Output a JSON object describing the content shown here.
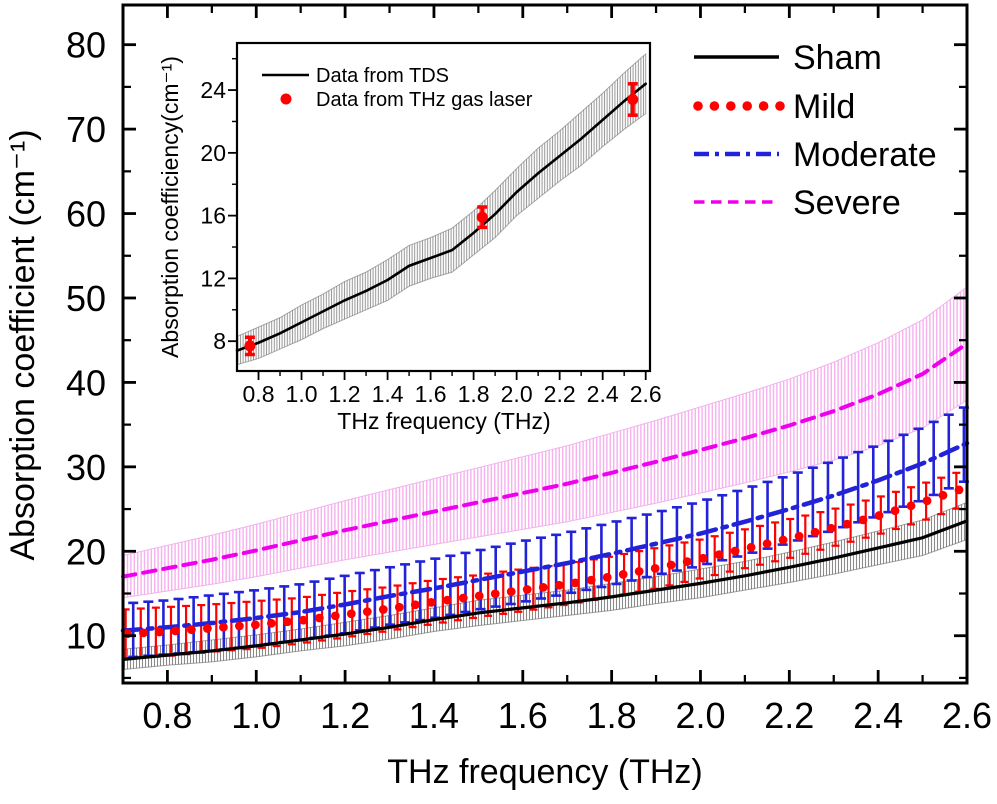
{
  "chart_data": [
    {
      "id": "main",
      "type": "line",
      "xlabel": "THz frequency (THz)",
      "ylabel": "Absorption coefficient (cm⁻¹)",
      "xlim": [
        0.7,
        2.6
      ],
      "ylim": [
        4.4,
        84.7
      ],
      "grid": false,
      "legend_position": "top-right",
      "x_ticks": {
        "major": [
          0.8,
          1.0,
          1.2,
          1.4,
          1.6,
          1.8,
          2.0,
          2.2,
          2.4,
          2.6
        ],
        "labels": [
          "0.8",
          "1.0",
          "1.2",
          "1.4",
          "1.6",
          "1.8",
          "2.0",
          "2.2",
          "2.4",
          "2.6"
        ],
        "minor": [
          0.9,
          1.1,
          1.3,
          1.5,
          1.7,
          1.9,
          2.1,
          2.3,
          2.5
        ]
      },
      "y_ticks": {
        "major": [
          10,
          20,
          30,
          40,
          50,
          60,
          70,
          80
        ],
        "labels": [
          "10",
          "20",
          "30",
          "40",
          "50",
          "60",
          "70",
          "80"
        ],
        "minor": [
          5,
          15,
          25,
          35,
          45,
          55,
          65,
          75
        ]
      },
      "x": [
        0.7,
        0.8,
        0.9,
        1.0,
        1.1,
        1.2,
        1.3,
        1.4,
        1.5,
        1.6,
        1.7,
        1.8,
        1.9,
        2.0,
        2.1,
        2.2,
        2.3,
        2.4,
        2.5,
        2.6
      ],
      "series": [
        {
          "name": "Sham",
          "style": "band-line",
          "color": "#000000",
          "band_hatch": "#3d3d3d",
          "y": [
            7.2,
            7.7,
            8.2,
            8.8,
            9.5,
            10.2,
            11.0,
            11.9,
            12.7,
            13.3,
            13.9,
            14.6,
            15.4,
            16.2,
            17.1,
            18.1,
            19.2,
            20.4,
            21.6,
            23.6
          ],
          "err": [
            1.2,
            1.2,
            1.3,
            1.3,
            1.3,
            1.4,
            1.4,
            1.4,
            1.5,
            1.5,
            1.5,
            1.6,
            1.6,
            1.7,
            1.7,
            1.8,
            1.9,
            2.0,
            2.1,
            2.2
          ]
        },
        {
          "name": "Mild",
          "style": "dots-errorbars",
          "color": "#ff0000",
          "y": [
            10.2,
            10.5,
            10.9,
            11.3,
            11.8,
            12.5,
            13.2,
            14.0,
            14.7,
            15.4,
            16.1,
            17.0,
            18.0,
            19.1,
            20.3,
            21.5,
            22.8,
            24.2,
            25.8,
            27.6
          ],
          "err": [
            2.9,
            2.9,
            2.8,
            2.8,
            2.7,
            2.7,
            2.6,
            2.6,
            2.5,
            2.5,
            2.4,
            2.4,
            2.4,
            2.3,
            2.3,
            2.3,
            2.2,
            2.2,
            2.2,
            2.1
          ]
        },
        {
          "name": "Moderate",
          "style": "dashdot-errorbars",
          "color": "#2222d8",
          "y": [
            10.6,
            11.0,
            11.5,
            12.1,
            12.8,
            13.7,
            14.7,
            15.6,
            16.6,
            17.6,
            18.6,
            19.7,
            20.9,
            22.1,
            23.5,
            25.0,
            26.6,
            28.4,
            30.4,
            32.8
          ],
          "err": [
            3.2,
            3.2,
            3.3,
            3.3,
            3.3,
            3.4,
            3.4,
            3.5,
            3.5,
            3.6,
            3.6,
            3.7,
            3.7,
            3.8,
            3.9,
            4.0,
            4.1,
            4.2,
            4.3,
            4.4
          ]
        },
        {
          "name": "Severe",
          "style": "dash-band",
          "color": "#ee00ee",
          "band_hatch": "#f7a6ee",
          "y": [
            17.0,
            18.0,
            19.0,
            20.1,
            21.3,
            22.5,
            23.6,
            24.7,
            25.8,
            26.9,
            28.0,
            29.3,
            30.6,
            32.0,
            33.4,
            34.9,
            36.6,
            38.6,
            41.0,
            44.6
          ],
          "err": [
            2.5,
            2.7,
            2.9,
            3.1,
            3.3,
            3.5,
            3.7,
            3.9,
            4.1,
            4.3,
            4.5,
            4.7,
            4.9,
            5.1,
            5.3,
            5.5,
            5.8,
            6.1,
            6.4,
            6.7
          ]
        }
      ],
      "legend": [
        {
          "label": "Sham",
          "style": "solid",
          "color": "#000000"
        },
        {
          "label": "Mild",
          "style": "dots",
          "color": "#ff0000"
        },
        {
          "label": "Moderate",
          "style": "dashdot",
          "color": "#2222d8"
        },
        {
          "label": "Severe",
          "style": "dash",
          "color": "#ee00ee"
        }
      ]
    },
    {
      "id": "inset",
      "type": "line",
      "xlabel": "THz frequency (THz)",
      "ylabel": "Absorption coefficiency(cm⁻¹)",
      "xlim": [
        0.7,
        2.62
      ],
      "ylim": [
        6.1,
        27.0
      ],
      "grid": false,
      "legend_position": "top-left",
      "x_ticks": {
        "major": [
          0.8,
          1.0,
          1.2,
          1.4,
          1.6,
          1.8,
          2.0,
          2.2,
          2.4,
          2.6
        ],
        "labels": [
          "0.8",
          "1.0",
          "1.2",
          "1.4",
          "1.6",
          "1.8",
          "2.0",
          "2.2",
          "2.4",
          "2.6"
        ],
        "minor": [
          0.9,
          1.1,
          1.3,
          1.5,
          1.7,
          1.9,
          2.1,
          2.3,
          2.5
        ]
      },
      "y_ticks": {
        "major": [
          8,
          12,
          16,
          20,
          24
        ],
        "labels": [
          "8",
          "12",
          "16",
          "20",
          "24"
        ],
        "minor": [
          6,
          10,
          14,
          18,
          22,
          26
        ]
      },
      "x": [
        0.7,
        0.8,
        0.9,
        1.0,
        1.1,
        1.2,
        1.3,
        1.4,
        1.5,
        1.6,
        1.7,
        1.8,
        1.9,
        2.0,
        2.1,
        2.2,
        2.3,
        2.4,
        2.5,
        2.6
      ],
      "series": [
        {
          "name": "Data from TDS",
          "style": "band-line",
          "color": "#000000",
          "band_hatch": "#3d3d3d",
          "y": [
            7.4,
            7.9,
            8.5,
            9.2,
            9.9,
            10.6,
            11.2,
            11.9,
            12.8,
            13.3,
            13.8,
            14.9,
            16.1,
            17.5,
            18.7,
            19.8,
            20.9,
            22.1,
            23.3,
            24.4
          ],
          "err": [
            0.9,
            1.0,
            1.0,
            1.1,
            1.1,
            1.2,
            1.2,
            1.3,
            1.3,
            1.3,
            1.4,
            1.4,
            1.5,
            1.5,
            1.6,
            1.6,
            1.7,
            1.7,
            1.8,
            1.9
          ]
        },
        {
          "name": "Data from THz gas laser",
          "style": "points-errorbars",
          "color": "#ff0000",
          "points_x": [
            0.76,
            1.84,
            2.54
          ],
          "points_y": [
            7.7,
            15.9,
            23.4
          ],
          "points_err": [
            0.55,
            0.65,
            1.0
          ]
        }
      ],
      "legend": [
        {
          "label": "Data from TDS",
          "style": "solid",
          "color": "#000000"
        },
        {
          "label": "Data from THz gas laser",
          "style": "point",
          "color": "#ff0000"
        }
      ]
    }
  ],
  "colors": {
    "frame": "#000000",
    "sham": "#000000",
    "mild": "#ff0000",
    "moderate": "#2222d8",
    "severe": "#ee00ee",
    "severe_band": "#f7a6ee",
    "gray_band": "#3d3d3d",
    "background": "#ffffff"
  }
}
